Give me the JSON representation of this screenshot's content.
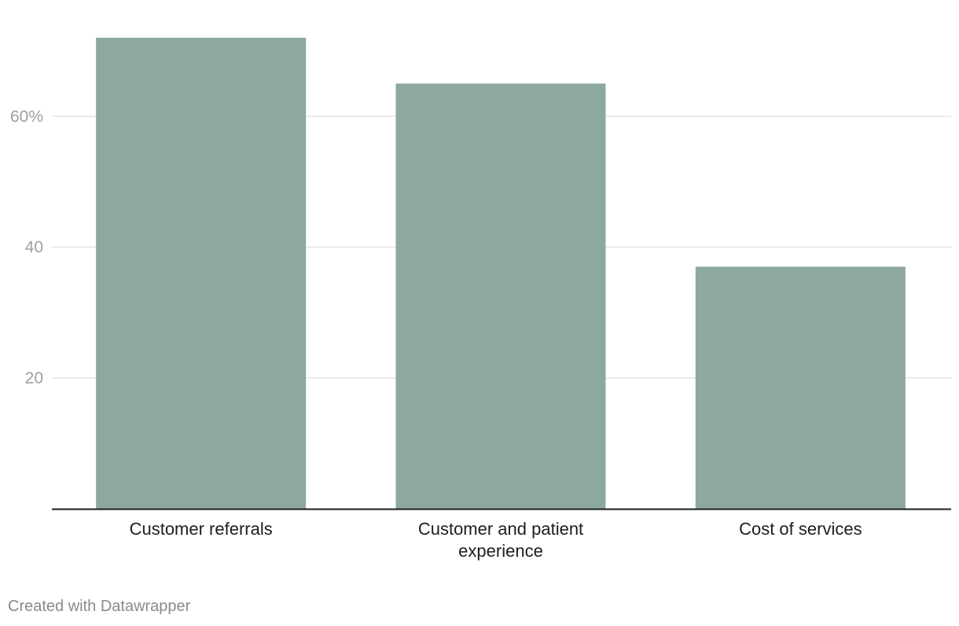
{
  "chart_data": {
    "type": "bar",
    "categories": [
      [
        "Customer referrals"
      ],
      [
        "Customer and patient",
        "experience"
      ],
      [
        "Cost of services"
      ]
    ],
    "values": [
      72,
      65,
      37
    ],
    "ylim": [
      0,
      72
    ],
    "yticks": [
      {
        "value": 20,
        "label": "20"
      },
      {
        "value": 40,
        "label": "40"
      },
      {
        "value": 60,
        "label": "60%"
      }
    ],
    "grid": true,
    "bar_color": "#8da7a1"
  },
  "footer": {
    "credit": "Created with Datawrapper"
  }
}
